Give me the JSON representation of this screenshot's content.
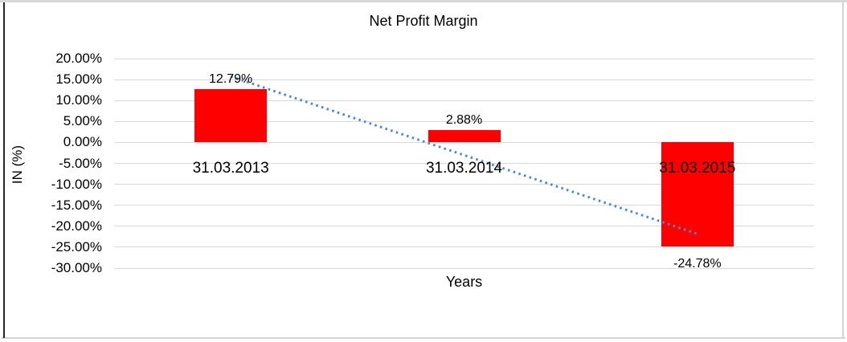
{
  "chart_data": {
    "type": "bar",
    "title": "Net Profit Margin",
    "xlabel": "Years",
    "ylabel": "IN (%)",
    "categories": [
      "31.03.2013",
      "31.03.2014",
      "31.03.2015"
    ],
    "values": [
      12.79,
      2.88,
      -24.78
    ],
    "value_labels": [
      "12.79%",
      "2.88%",
      "-24.78%"
    ],
    "y_ticks": [
      "20.00%",
      "15.00%",
      "10.00%",
      "5.00%",
      "0.00%",
      "-5.00%",
      "-10.00%",
      "-15.00%",
      "-20.00%",
      "-25.00%",
      "-30.00%"
    ],
    "y_tick_values": [
      20,
      15,
      10,
      5,
      0,
      -5,
      -10,
      -15,
      -20,
      -25,
      -30
    ],
    "ylim": [
      -30,
      20
    ],
    "grid": true,
    "grid_color": "#d9d9d9",
    "legend": "none",
    "bar_color": "#ff0000",
    "trendline": {
      "type": "linear",
      "style": "dotted",
      "color": "#5089cf",
      "fitted_endpoints": [
        15.75,
        -21.82
      ]
    }
  }
}
